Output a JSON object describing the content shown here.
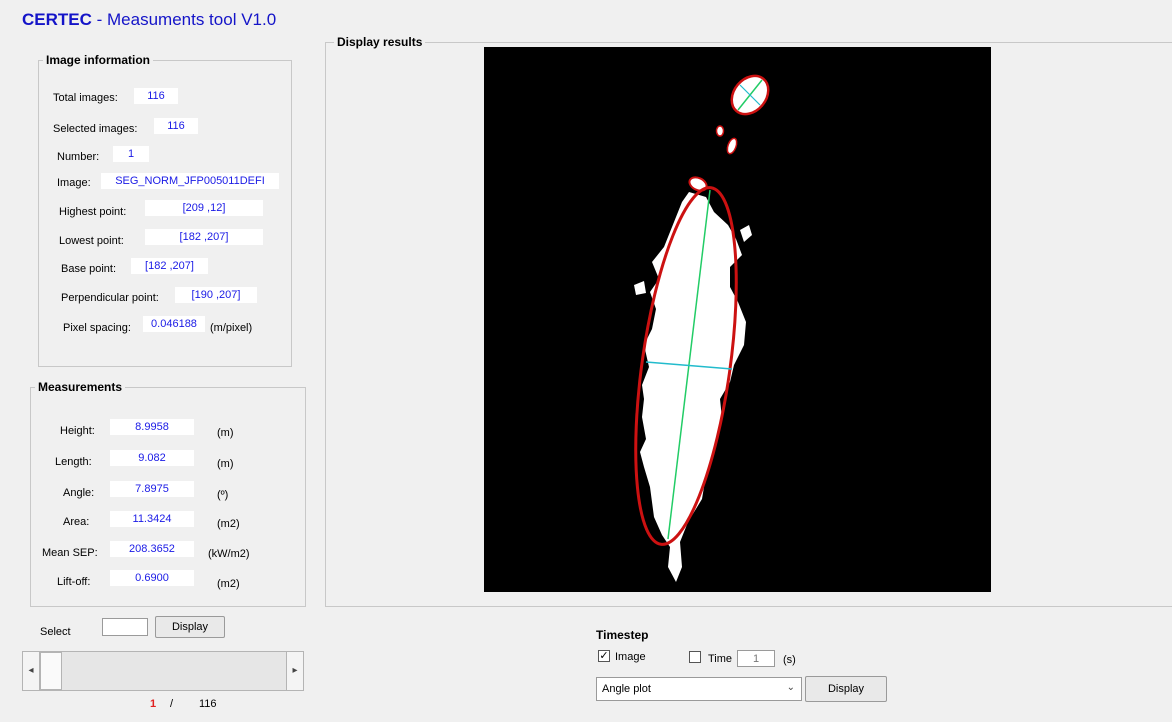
{
  "app": {
    "brand": "CERTEC",
    "title_rest": " - Measuments tool  V1.0"
  },
  "image_info": {
    "title": "Image information",
    "total_images_label": "Total images:",
    "total_images_value": "116",
    "selected_images_label": "Selected images:",
    "selected_images_value": "116",
    "number_label": "Number:",
    "number_value": "1",
    "image_label": "Image:",
    "image_value": "SEG_NORM_JFP005011DEFI",
    "highest_label": "Highest point:",
    "highest_value": "[209 ,12]",
    "lowest_label": "Lowest point:",
    "lowest_value": "[182 ,207]",
    "base_label": "Base point:",
    "base_value": "[182 ,207]",
    "perp_label": "Perpendicular point:",
    "perp_value": "[190 ,207]",
    "spacing_label": "Pixel spacing:",
    "spacing_value": "0.046188",
    "spacing_unit": "(m/pixel)"
  },
  "measurements": {
    "title": "Measurements",
    "rows": [
      {
        "label": "Height:",
        "value": "8.9958",
        "unit": "(m)"
      },
      {
        "label": "Length:",
        "value": "9.082",
        "unit": "(m)"
      },
      {
        "label": "Angle:",
        "value": "7.8975",
        "unit": "(º)"
      },
      {
        "label": "Area:",
        "value": "11.3424",
        "unit": "(m2)"
      },
      {
        "label": "Mean SEP:",
        "value": "208.3652",
        "unit": "(kW/m2)"
      },
      {
        "label": "Lift-off:",
        "value": "0.6900",
        "unit": "(m2)"
      }
    ]
  },
  "select": {
    "label": "Select",
    "value": "",
    "display_button": "Display"
  },
  "slider": {
    "current": "1",
    "separator": "/",
    "total": "116",
    "left_arrow": "◂",
    "right_arrow": "▸",
    "position_fraction": 0.0
  },
  "display_results": {
    "title": "Display results"
  },
  "timestep": {
    "title": "Timestep",
    "image_label": "Image",
    "image_checked": true,
    "time_label": "Time",
    "time_checked": false,
    "time_value": "1",
    "time_unit": "(s)",
    "plot_select": "Angle plot",
    "display_button": "Display"
  },
  "colors": {
    "value_text": "#1a1ae6",
    "brand": "#1414c8",
    "current_page": "#e02020",
    "ellipse": "#cc1111",
    "major_axis": "#22cc66",
    "minor_axis": "#22bbcc"
  }
}
